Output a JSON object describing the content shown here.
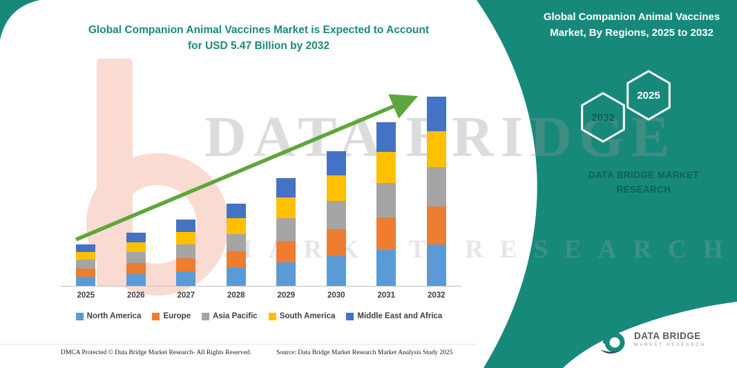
{
  "header": {
    "left_title": "Global Companion Animal Vaccines Market is Expected to Account for USD 5.47 Billion by 2032",
    "right_title": "Global Companion Animal Vaccines Market, By Regions, 2025 to 2032"
  },
  "panel": {
    "hexagon_back_label": "2032",
    "hexagon_front_label": "2025",
    "brand_line1": "DATA BRIDGE MARKET",
    "brand_line2": "RESEARCH"
  },
  "watermark": {
    "line1": "DATA BRIDGE",
    "line2": "MARKET RESEARCH"
  },
  "logo": {
    "title": "DATA BRIDGE",
    "subtitle": "MARKET RESEARCH"
  },
  "footer": {
    "dmca": "DMCA Protected © Data Bridge Market Research-  All Rights Reserved.",
    "source": "Source: Data Bridge Market Research  Market Analysis Study 2025"
  },
  "colors": {
    "teal": "#17897B",
    "arrow_green": "#5EA63C",
    "title_teal": "#1B8A7E"
  },
  "chart_data": {
    "type": "bar",
    "stacked": true,
    "title": "Global Companion Animal Vaccines Market, By Regions, 2025 to 2032",
    "categories": [
      "2025",
      "2026",
      "2027",
      "2028",
      "2029",
      "2030",
      "2031",
      "2032"
    ],
    "series": [
      {
        "name": "North America",
        "color": "#5B9BD5",
        "values": [
          0.26,
          0.34,
          0.42,
          0.52,
          0.68,
          0.86,
          1.04,
          1.2
        ]
      },
      {
        "name": "Europe",
        "color": "#ED7D31",
        "values": [
          0.24,
          0.31,
          0.38,
          0.47,
          0.62,
          0.78,
          0.94,
          1.09
        ]
      },
      {
        "name": "Asia Pacific",
        "color": "#A5A5A5",
        "values": [
          0.25,
          0.32,
          0.4,
          0.5,
          0.65,
          0.82,
          0.99,
          1.15
        ]
      },
      {
        "name": "South America",
        "color": "#FFC000",
        "values": [
          0.22,
          0.29,
          0.36,
          0.45,
          0.59,
          0.74,
          0.9,
          1.04
        ]
      },
      {
        "name": "Middle East and Africa",
        "color": "#4472C4",
        "values": [
          0.21,
          0.28,
          0.35,
          0.42,
          0.57,
          0.7,
          0.85,
          0.99
        ]
      }
    ],
    "totals": [
      1.18,
      1.54,
      1.91,
      2.36,
      3.11,
      3.9,
      4.72,
      5.47
    ],
    "units": "USD Billion",
    "ylim": [
      0,
      6
    ],
    "xlabel": "",
    "ylabel": "",
    "legend_position": "bottom",
    "grid": false,
    "annotation": "upward green trend arrow across bars"
  }
}
